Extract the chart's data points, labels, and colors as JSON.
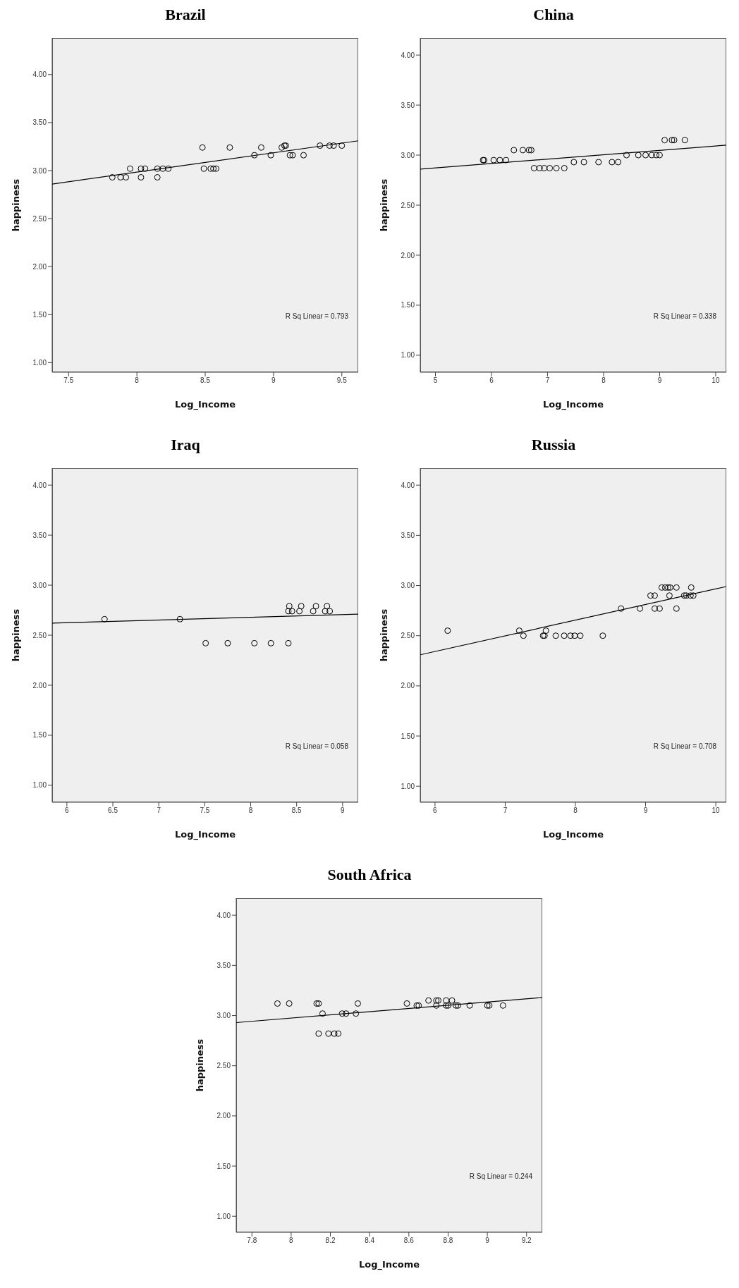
{
  "chart_data": [
    {
      "type": "scatter",
      "title": "Brazil",
      "xlabel": "Log_Income",
      "ylabel": "happiness",
      "xlim": [
        7.38,
        9.62
      ],
      "ylim": [
        0.9,
        4.38
      ],
      "xticks": [
        7.5,
        8,
        8.5,
        9,
        9.5
      ],
      "yticks": [
        {
          "value": 1,
          "label": "1.00"
        },
        {
          "value": 1.5,
          "label": "1.50"
        },
        {
          "value": 2,
          "label": "2.00"
        },
        {
          "value": 2.5,
          "label": "2.50"
        },
        {
          "value": 3,
          "label": "3.00"
        },
        {
          "value": 3.5,
          "label": "3.50"
        },
        {
          "value": 4,
          "label": "4.00"
        }
      ],
      "annotations": [
        "R Sq Linear = 0.793"
      ],
      "series": [
        {
          "marker": "circle",
          "color": "#000000",
          "x": [
            7.82,
            7.88,
            7.92,
            7.95,
            8.03,
            8.03,
            8.06,
            8.15,
            8.15,
            8.19,
            8.23,
            8.48,
            8.49,
            8.54,
            8.56,
            8.58,
            8.68,
            8.86,
            8.91,
            8.98,
            9.06,
            9.08,
            9.09,
            9.12,
            9.14,
            9.22,
            9.34,
            9.41,
            9.44,
            9.5
          ],
          "values": [
            2.93,
            2.93,
            2.93,
            3.02,
            2.93,
            3.02,
            3.02,
            2.93,
            3.02,
            3.02,
            3.02,
            3.24,
            3.02,
            3.02,
            3.02,
            3.02,
            3.24,
            3.16,
            3.24,
            3.16,
            3.24,
            3.26,
            3.26,
            3.16,
            3.16,
            3.16,
            3.26,
            3.26,
            3.26,
            3.26
          ]
        },
        {
          "type": "line",
          "marker": "none",
          "color": "#000000",
          "x": [
            7.38,
            9.62
          ],
          "values": [
            2.86,
            3.31
          ]
        }
      ]
    },
    {
      "type": "scatter",
      "title": "China",
      "xlabel": "Log_Income",
      "ylabel": "happiness",
      "xlim": [
        4.73,
        10.19
      ],
      "ylim": [
        0.83,
        4.17
      ],
      "xticks": [
        5,
        6,
        7,
        8,
        9,
        10
      ],
      "yticks": [
        {
          "value": 1,
          "label": "1.00"
        },
        {
          "value": 1.5,
          "label": "1.50"
        },
        {
          "value": 2,
          "label": "2.00"
        },
        {
          "value": 2.5,
          "label": "2.50"
        },
        {
          "value": 3,
          "label": "3.00"
        },
        {
          "value": 3.5,
          "label": "3.50"
        },
        {
          "value": 4,
          "label": "4.00"
        }
      ],
      "annotations": [
        "R Sq Linear = 0.338"
      ],
      "series": [
        {
          "marker": "circle",
          "color": "#000000",
          "x": [
            5.85,
            5.87,
            6.04,
            6.15,
            6.26,
            6.4,
            6.56,
            6.67,
            6.71,
            6.76,
            6.86,
            6.94,
            7.04,
            7.16,
            7.3,
            7.47,
            7.65,
            7.91,
            8.15,
            8.26,
            8.41,
            8.62,
            8.75,
            8.86,
            8.94,
            9.0,
            9.09,
            9.22,
            9.26,
            9.45
          ],
          "values": [
            2.95,
            2.95,
            2.95,
            2.95,
            2.95,
            3.05,
            3.05,
            3.05,
            3.05,
            2.87,
            2.87,
            2.87,
            2.87,
            2.87,
            2.87,
            2.93,
            2.93,
            2.93,
            2.93,
            2.93,
            3.0,
            3.0,
            3.0,
            3.0,
            3.0,
            3.0,
            3.15,
            3.15,
            3.15,
            3.15
          ]
        },
        {
          "type": "line",
          "marker": "none",
          "color": "#000000",
          "x": [
            4.73,
            10.19
          ],
          "values": [
            2.86,
            3.1
          ]
        }
      ]
    },
    {
      "type": "scatter",
      "title": "Iraq",
      "xlabel": "Log_Income",
      "ylabel": "happiness",
      "xlim": [
        5.84,
        9.17
      ],
      "ylim": [
        0.83,
        4.17
      ],
      "xticks": [
        6,
        6.5,
        7,
        7.5,
        8,
        8.5,
        9
      ],
      "yticks": [
        {
          "value": 1,
          "label": "1.00"
        },
        {
          "value": 1.5,
          "label": "1.50"
        },
        {
          "value": 2,
          "label": "2.00"
        },
        {
          "value": 2.5,
          "label": "2.50"
        },
        {
          "value": 3,
          "label": "3.00"
        },
        {
          "value": 3.5,
          "label": "3.50"
        },
        {
          "value": 4,
          "label": "4.00"
        }
      ],
      "annotations": [
        "R Sq Linear = 0.058"
      ],
      "series": [
        {
          "marker": "circle",
          "color": "#000000",
          "x": [
            6.41,
            7.23,
            7.51,
            7.75,
            8.04,
            8.22,
            8.41,
            8.42,
            8.41,
            8.45,
            8.53,
            8.55,
            8.68,
            8.71,
            8.81,
            8.83,
            8.86
          ],
          "values": [
            2.66,
            2.66,
            2.42,
            2.42,
            2.42,
            2.42,
            2.42,
            2.79,
            2.74,
            2.74,
            2.74,
            2.79,
            2.74,
            2.79,
            2.74,
            2.79,
            2.74
          ]
        },
        {
          "type": "line",
          "marker": "none",
          "color": "#000000",
          "x": [
            5.84,
            9.17
          ],
          "values": [
            2.62,
            2.71
          ]
        }
      ]
    },
    {
      "type": "scatter",
      "title": "Russia",
      "xlabel": "Log_Income",
      "ylabel": "happiness",
      "xlim": [
        5.79,
        10.15
      ],
      "ylim": [
        0.84,
        4.17
      ],
      "xticks": [
        6,
        7,
        8,
        9,
        10
      ],
      "yticks": [
        {
          "value": 1,
          "label": "1.00"
        },
        {
          "value": 1.5,
          "label": "1.50"
        },
        {
          "value": 2,
          "label": "2.00"
        },
        {
          "value": 2.5,
          "label": "2.50"
        },
        {
          "value": 3,
          "label": "3.00"
        },
        {
          "value": 3.5,
          "label": "3.50"
        },
        {
          "value": 4,
          "label": "4.00"
        }
      ],
      "annotations": [
        "R Sq Linear = 0.708"
      ],
      "series": [
        {
          "marker": "circle",
          "color": "#000000",
          "x": [
            6.18,
            7.2,
            7.26,
            7.54,
            7.56,
            7.58,
            7.72,
            7.84,
            7.93,
            7.99,
            8.07,
            8.39,
            8.65,
            8.92,
            9.07,
            9.13,
            9.13,
            9.2,
            9.23,
            9.28,
            9.32,
            9.35,
            9.34,
            9.44,
            9.44,
            9.55,
            9.58,
            9.64,
            9.65,
            9.68
          ],
          "values": [
            2.55,
            2.55,
            2.5,
            2.5,
            2.5,
            2.55,
            2.5,
            2.5,
            2.5,
            2.5,
            2.5,
            2.5,
            2.77,
            2.77,
            2.9,
            2.9,
            2.77,
            2.77,
            2.98,
            2.98,
            2.98,
            2.98,
            2.9,
            2.98,
            2.77,
            2.9,
            2.9,
            2.9,
            2.98,
            2.9
          ]
        },
        {
          "type": "line",
          "marker": "none",
          "color": "#000000",
          "x": [
            5.79,
            10.15
          ],
          "values": [
            2.31,
            2.99
          ]
        }
      ]
    },
    {
      "type": "scatter",
      "title": "South Africa",
      "xlabel": "Log_Income",
      "ylabel": "happiness",
      "xlim": [
        7.72,
        9.28
      ],
      "ylim": [
        0.84,
        4.17
      ],
      "xticks": [
        7.8,
        8,
        8.2,
        8.4,
        8.6,
        8.8,
        9,
        9.2
      ],
      "yticks": [
        {
          "value": 1,
          "label": "1.00"
        },
        {
          "value": 1.5,
          "label": "1.50"
        },
        {
          "value": 2,
          "label": "2.00"
        },
        {
          "value": 2.5,
          "label": "2.50"
        },
        {
          "value": 3,
          "label": "3.00"
        },
        {
          "value": 3.5,
          "label": "3.50"
        },
        {
          "value": 4,
          "label": "4.00"
        }
      ],
      "annotations": [
        "R Sq Linear = 0.244"
      ],
      "series": [
        {
          "marker": "circle",
          "color": "#000000",
          "x": [
            7.93,
            7.99,
            8.13,
            8.14,
            8.14,
            8.16,
            8.19,
            8.22,
            8.24,
            8.26,
            8.28,
            8.33,
            8.34,
            8.59,
            8.64,
            8.65,
            8.7,
            8.74,
            8.74,
            8.75,
            8.79,
            8.79,
            8.8,
            8.82,
            8.84,
            8.85,
            8.91,
            9.0,
            9.01,
            9.08
          ],
          "values": [
            3.12,
            3.12,
            3.12,
            3.12,
            2.82,
            3.02,
            2.82,
            2.82,
            2.82,
            3.02,
            3.02,
            3.02,
            3.12,
            3.12,
            3.1,
            3.1,
            3.15,
            3.15,
            3.1,
            3.15,
            3.15,
            3.1,
            3.1,
            3.15,
            3.1,
            3.1,
            3.1,
            3.1,
            3.1,
            3.1
          ]
        },
        {
          "type": "line",
          "marker": "none",
          "color": "#000000",
          "x": [
            7.72,
            9.28
          ],
          "values": [
            2.93,
            3.18
          ]
        }
      ]
    }
  ]
}
